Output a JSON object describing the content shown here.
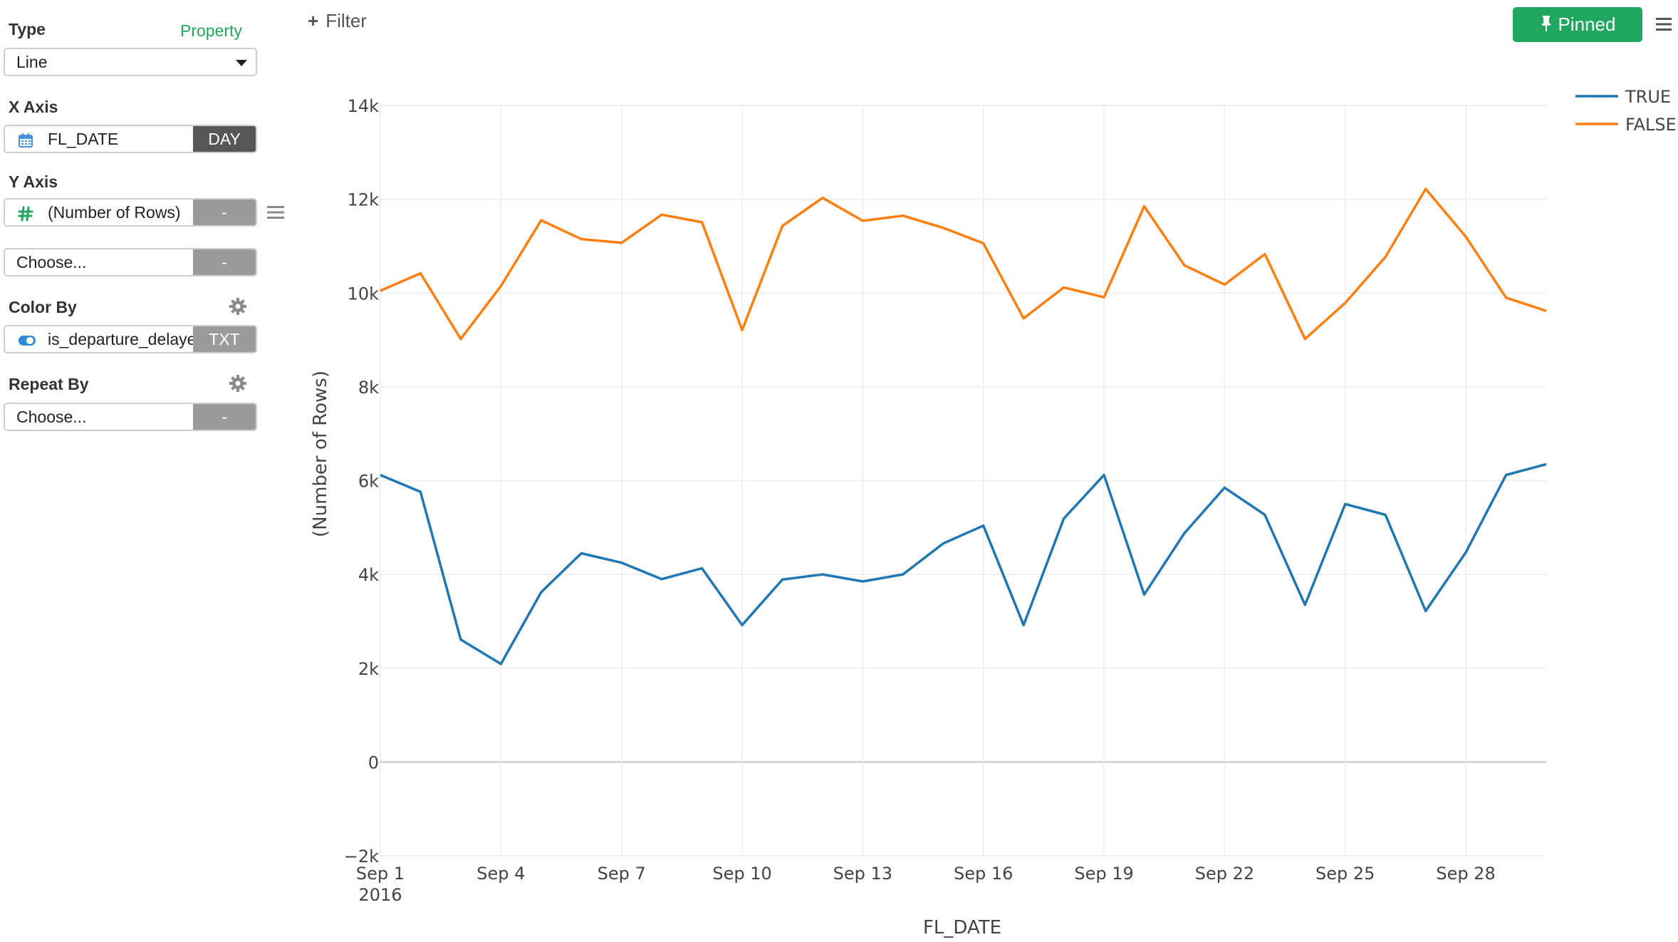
{
  "sidebar": {
    "type": {
      "label": "Type",
      "property_link": "Property",
      "value": "Line"
    },
    "x_axis": {
      "label": "X Axis",
      "field": "FL_DATE",
      "unit": "DAY",
      "icon": "calendar-icon"
    },
    "y_axis": {
      "label": "Y Axis",
      "field": "(Number of Rows)",
      "agg": "-",
      "icon": "hash-icon",
      "second_field": "Choose...",
      "second_agg": "-"
    },
    "color_by": {
      "label": "Color By",
      "field": "is_departure_delayed",
      "type": "TXT",
      "icon": "toggle-icon"
    },
    "repeat_by": {
      "label": "Repeat By",
      "field": "Choose...",
      "agg": "-"
    }
  },
  "toolbar": {
    "filter_label": "Filter",
    "pinned_label": "Pinned"
  },
  "colors": {
    "accent": "#1fa75f",
    "series_true": "#1f77b4",
    "series_false": "#ff7f0e"
  },
  "chart_data": {
    "type": "line",
    "title": "",
    "xlabel": "FL_DATE",
    "ylabel": "(Number of Rows)",
    "x": [
      "2016-09-01",
      "2016-09-02",
      "2016-09-03",
      "2016-09-04",
      "2016-09-05",
      "2016-09-06",
      "2016-09-07",
      "2016-09-08",
      "2016-09-09",
      "2016-09-10",
      "2016-09-11",
      "2016-09-12",
      "2016-09-13",
      "2016-09-14",
      "2016-09-15",
      "2016-09-16",
      "2016-09-17",
      "2016-09-18",
      "2016-09-19",
      "2016-09-20",
      "2016-09-21",
      "2016-09-22",
      "2016-09-23",
      "2016-09-24",
      "2016-09-25",
      "2016-09-26",
      "2016-09-27",
      "2016-09-28",
      "2016-09-29",
      "2016-09-30"
    ],
    "x_ticks": [
      {
        "date": "2016-09-01",
        "label": "Sep 1",
        "sublabel": "2016"
      },
      {
        "date": "2016-09-04",
        "label": "Sep 4"
      },
      {
        "date": "2016-09-07",
        "label": "Sep 7"
      },
      {
        "date": "2016-09-10",
        "label": "Sep 10"
      },
      {
        "date": "2016-09-13",
        "label": "Sep 13"
      },
      {
        "date": "2016-09-16",
        "label": "Sep 16"
      },
      {
        "date": "2016-09-19",
        "label": "Sep 19"
      },
      {
        "date": "2016-09-22",
        "label": "Sep 22"
      },
      {
        "date": "2016-09-25",
        "label": "Sep 25"
      },
      {
        "date": "2016-09-28",
        "label": "Sep 28"
      }
    ],
    "ylim": [
      -2000,
      14000
    ],
    "y_ticks": [
      {
        "value": -2000,
        "label": "−2k"
      },
      {
        "value": 0,
        "label": "0"
      },
      {
        "value": 2000,
        "label": "2k"
      },
      {
        "value": 4000,
        "label": "4k"
      },
      {
        "value": 6000,
        "label": "6k"
      },
      {
        "value": 8000,
        "label": "8k"
      },
      {
        "value": 10000,
        "label": "10k"
      },
      {
        "value": 12000,
        "label": "12k"
      },
      {
        "value": 14000,
        "label": "14k"
      }
    ],
    "grid": true,
    "legend": "top-right",
    "series": [
      {
        "name": "TRUE",
        "color": "#1f77b4",
        "values": [
          6120,
          5760,
          2610,
          2090,
          3620,
          4450,
          4250,
          3900,
          4130,
          2920,
          3890,
          4000,
          3850,
          4000,
          4660,
          5040,
          2920,
          5190,
          6120,
          3570,
          4880,
          5850,
          5270,
          3350,
          5500,
          5270,
          3220,
          4470,
          6120,
          6350
        ]
      },
      {
        "name": "FALSE",
        "color": "#ff7f0e",
        "values": [
          10050,
          10420,
          9020,
          10150,
          11550,
          11150,
          11070,
          11670,
          11510,
          9210,
          11430,
          12030,
          11540,
          11650,
          11390,
          11060,
          9460,
          10120,
          9910,
          11850,
          10590,
          10180,
          10830,
          9020,
          9790,
          10770,
          12220,
          11200,
          9900,
          9620
        ]
      }
    ]
  }
}
